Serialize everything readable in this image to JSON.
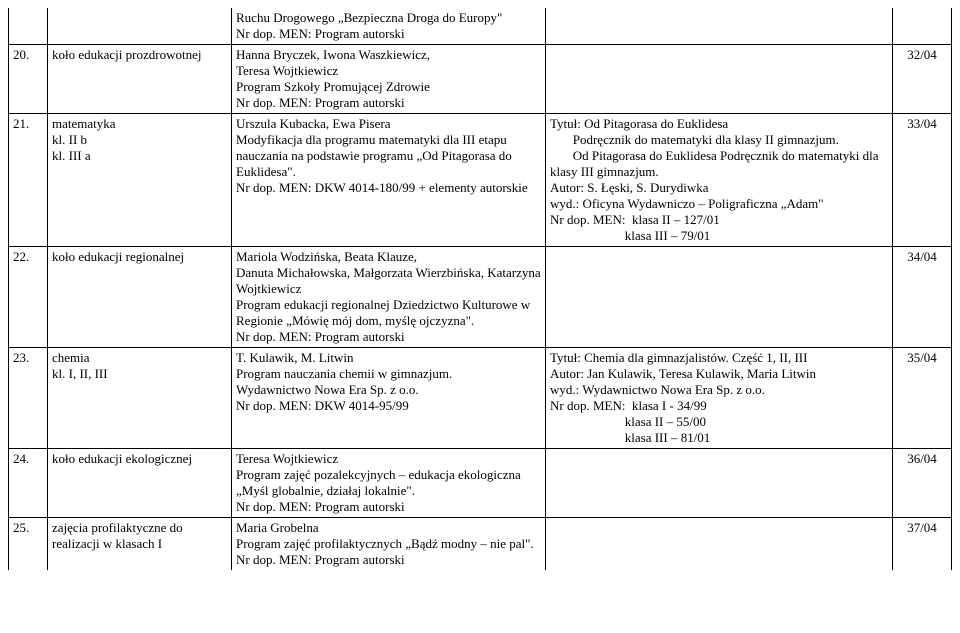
{
  "columns": {
    "num_width": 30,
    "subject_width": 175,
    "prog_width": 305,
    "numr_width": 50
  },
  "rows": [
    {
      "num": "",
      "subject": "",
      "prog": "Ruchu Drogowego „Bezpieczna Droga do Europy\"\nNr dop. MEN: Program autorski",
      "book": "",
      "numr": "",
      "cls": "continuation"
    },
    {
      "num": "20.",
      "subject": "koło edukacji prozdrowotnej",
      "prog": "Hanna Bryczek, Iwona Waszkiewicz,\nTeresa Wojtkiewicz\nProgram Szkoły Promującej Zdrowie\nNr dop. MEN: Program autorski",
      "book": "",
      "numr": "32/04",
      "cls": ""
    },
    {
      "num": "21.",
      "subject": "matematyka\nkl. II b\nkl. III a",
      "prog": "Urszula Kubacka, Ewa Pisera\nModyfikacja dla programu matematyki dla III etapu nauczania na podstawie programu „Od Pitagorasa do Euklidesa\".\nNr dop. MEN: DKW 4014-180/99 + elementy autorskie",
      "book": "Tytuł: Od Pitagorasa do Euklidesa\n       Podręcznik do matematyki dla klasy II gimnazjum.\n       Od Pitagorasa do Euklidesa Podręcznik do matematyki dla klasy III gimnazjum.\nAutor: S. Łęski, S. Durydiwka\nwyd.: Oficyna Wydawniczo – Poligraficzna „Adam\"\nNr dop. MEN:  klasa II – 127/01\n                       klasa III – 79/01",
      "numr": "33/04",
      "cls": ""
    },
    {
      "num": "22.",
      "subject": "koło edukacji regionalnej",
      "prog": "Mariola Wodzińska, Beata Klauze,\nDanuta Michałowska, Małgorzata Wierzbińska, Katarzyna Wojtkiewicz\nProgram edukacji regionalnej Dziedzictwo Kulturowe w Regionie „Mówię mój dom, myślę ojczyzna\".\nNr dop. MEN: Program autorski",
      "book": "",
      "numr": "34/04",
      "cls": ""
    },
    {
      "num": "23.",
      "subject": "chemia\nkl. I, II, III",
      "prog": "T. Kulawik, M. Litwin\nProgram nauczania chemii w gimnazjum.\nWydawnictwo Nowa Era Sp. z o.o.\nNr dop. MEN: DKW 4014-95/99",
      "book": "Tytuł: Chemia dla gimnazjalistów. Część 1, II, III\nAutor: Jan Kulawik, Teresa Kulawik, Maria Litwin\nwyd.: Wydawnictwo Nowa Era Sp. z o.o.\nNr dop. MEN:  klasa I - 34/99\n                       klasa II – 55/00\n                       klasa III – 81/01",
      "numr": "35/04",
      "cls": ""
    },
    {
      "num": "24.",
      "subject": "koło edukacji ekologicznej",
      "prog": "Teresa Wojtkiewicz\nProgram zajęć pozalekcyjnych – edukacja ekologiczna „Myśl globalnie, działaj lokalnie\".\nNr dop. MEN: Program autorski",
      "book": "",
      "numr": "36/04",
      "cls": ""
    },
    {
      "num": "25.",
      "subject": "zajęcia profilaktyczne do realizacji w klasach I",
      "prog": "Maria Grobelna\nProgram zajęć profilaktycznych „Bądź modny – nie pal\".\nNr dop. MEN: Program autorski",
      "book": "",
      "numr": "37/04",
      "cls": "first"
    }
  ]
}
